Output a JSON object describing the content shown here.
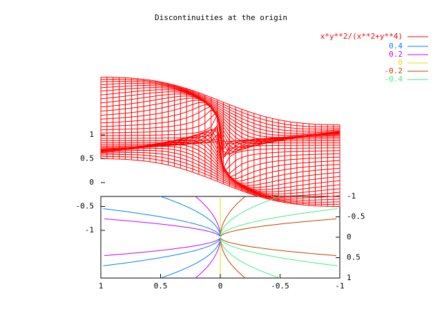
{
  "chart_data": {
    "type": "surface",
    "title": "Discontinuities at the origin",
    "function": "x*y**2/(x**2+y**4)",
    "color": "#ff0000",
    "levels": [
      0.4,
      0.2,
      0,
      -0.2,
      -0.4
    ],
    "level_colors": [
      "#0080ff",
      "#c000ff",
      "#e0e000",
      "#c04000",
      "#40f080"
    ],
    "xlim": [
      1,
      -1
    ],
    "xticks": [
      1,
      0.5,
      0,
      -0.5,
      -1
    ],
    "ylim": [
      -1,
      1
    ],
    "yticks": [
      -1,
      -0.5,
      0,
      0.5,
      1
    ],
    "zticks": [
      -1,
      -0.5,
      0,
      0.5,
      1
    ]
  }
}
